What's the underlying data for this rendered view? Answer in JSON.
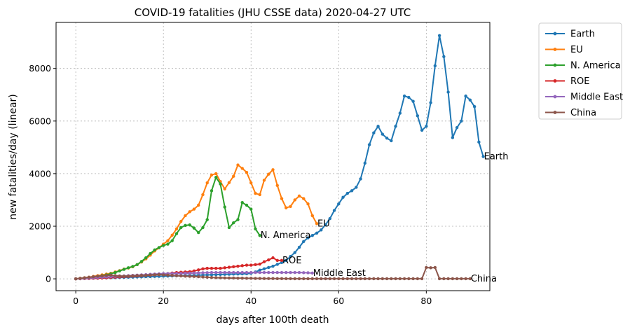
{
  "chart_data": {
    "type": "line",
    "title": "COVID-19 fatalities (JHU CSSE data) 2020-04-27 UTC",
    "xlabel": "days after 100th death",
    "ylabel": "new fatalities/day (linear)",
    "xlim": [
      -4.5,
      94.5
    ],
    "ylim": [
      -450,
      9750
    ],
    "xticks": [
      0,
      20,
      40,
      60,
      80
    ],
    "yticks": [
      0,
      2000,
      4000,
      6000,
      8000
    ],
    "grid": true,
    "legend_position": "outside-top-right",
    "series": [
      {
        "name": "Earth",
        "color": "#1f77b4",
        "end_label": "Earth",
        "values": [
          0,
          5,
          10,
          15,
          20,
          25,
          30,
          35,
          40,
          45,
          50,
          55,
          60,
          65,
          70,
          75,
          80,
          85,
          90,
          95,
          100,
          105,
          110,
          115,
          120,
          125,
          130,
          135,
          140,
          145,
          150,
          155,
          160,
          165,
          170,
          175,
          180,
          185,
          190,
          195,
          210,
          260,
          330,
          380,
          430,
          480,
          550,
          620,
          700,
          850,
          1000,
          1200,
          1420,
          1560,
          1650,
          1740,
          1860,
          2060,
          2290,
          2600,
          2850,
          3100,
          3250,
          3350,
          3480,
          3800,
          4400,
          5100,
          5550,
          5800,
          5500,
          5350,
          5250,
          5800,
          6300,
          6950,
          6900,
          6750,
          6200,
          5650,
          5800,
          6700,
          8100,
          9250,
          8450,
          7100,
          5370,
          5750,
          6000,
          6950,
          6800,
          6550,
          5200,
          4650
        ]
      },
      {
        "name": "EU",
        "color": "#ff7f0e",
        "end_label": "EU",
        "values": [
          0,
          20,
          40,
          60,
          90,
          120,
          150,
          180,
          210,
          260,
          310,
          370,
          410,
          460,
          540,
          640,
          760,
          900,
          1060,
          1180,
          1320,
          1450,
          1660,
          1900,
          2180,
          2400,
          2550,
          2650,
          2800,
          3200,
          3650,
          3950,
          4000,
          3700,
          3420,
          3660,
          3900,
          4330,
          4200,
          4050,
          3650,
          3250,
          3200,
          3750,
          3980,
          4150,
          3550,
          3050,
          2700,
          2750,
          3000,
          3150,
          3050,
          2850,
          2400,
          2100
        ]
      },
      {
        "name": "N. America",
        "color": "#2ca02c",
        "end_label": "N. America",
        "values": [
          0,
          10,
          20,
          40,
          60,
          90,
          120,
          150,
          190,
          240,
          300,
          360,
          420,
          470,
          540,
          660,
          800,
          960,
          1100,
          1190,
          1270,
          1320,
          1450,
          1720,
          1950,
          2030,
          2050,
          1930,
          1760,
          1950,
          2250,
          3350,
          3860,
          3610,
          2730,
          1950,
          2130,
          2250,
          2900,
          2800,
          2650,
          1900,
          1650
        ]
      },
      {
        "name": "ROE",
        "color": "#d62728",
        "end_label": "ROE",
        "values": [
          0,
          5,
          10,
          15,
          20,
          25,
          30,
          40,
          50,
          60,
          70,
          80,
          90,
          100,
          110,
          120,
          130,
          140,
          150,
          160,
          180,
          200,
          220,
          240,
          250,
          260,
          270,
          300,
          340,
          380,
          400,
          400,
          400,
          400,
          420,
          440,
          460,
          480,
          500,
          520,
          520,
          540,
          560,
          650,
          720,
          800,
          700,
          700
        ]
      },
      {
        "name": "Middle East",
        "color": "#9467bd",
        "end_label": "Middle East",
        "values": [
          0,
          10,
          20,
          30,
          40,
          50,
          60,
          70,
          80,
          90,
          100,
          110,
          120,
          130,
          140,
          150,
          160,
          170,
          180,
          190,
          200,
          200,
          200,
          200,
          205,
          210,
          215,
          220,
          225,
          230,
          235,
          240,
          240,
          240,
          240,
          240,
          240,
          240,
          240,
          240,
          240,
          240,
          240,
          240,
          240,
          240,
          240,
          240,
          240,
          240,
          240,
          240,
          235,
          230,
          220
        ]
      },
      {
        "name": "China",
        "color": "#8c564b",
        "end_label": "China",
        "values": [
          0,
          20,
          40,
          60,
          80,
          100,
          110,
          130,
          140,
          120,
          110,
          100,
          105,
          115,
          125,
          130,
          135,
          145,
          155,
          165,
          150,
          140,
          130,
          120,
          110,
          100,
          95,
          90,
          80,
          70,
          60,
          50,
          45,
          40,
          35,
          30,
          30,
          25,
          25,
          20,
          20,
          15,
          15,
          10,
          10,
          10,
          8,
          8,
          6,
          6,
          5,
          5,
          5,
          5,
          5,
          5,
          5,
          5,
          5,
          5,
          5,
          5,
          5,
          5,
          5,
          5,
          5,
          5,
          5,
          5,
          5,
          5,
          5,
          5,
          5,
          5,
          5,
          5,
          5,
          5,
          430,
          420,
          430,
          5,
          5,
          5,
          5,
          5,
          5,
          5,
          5
        ]
      }
    ]
  }
}
